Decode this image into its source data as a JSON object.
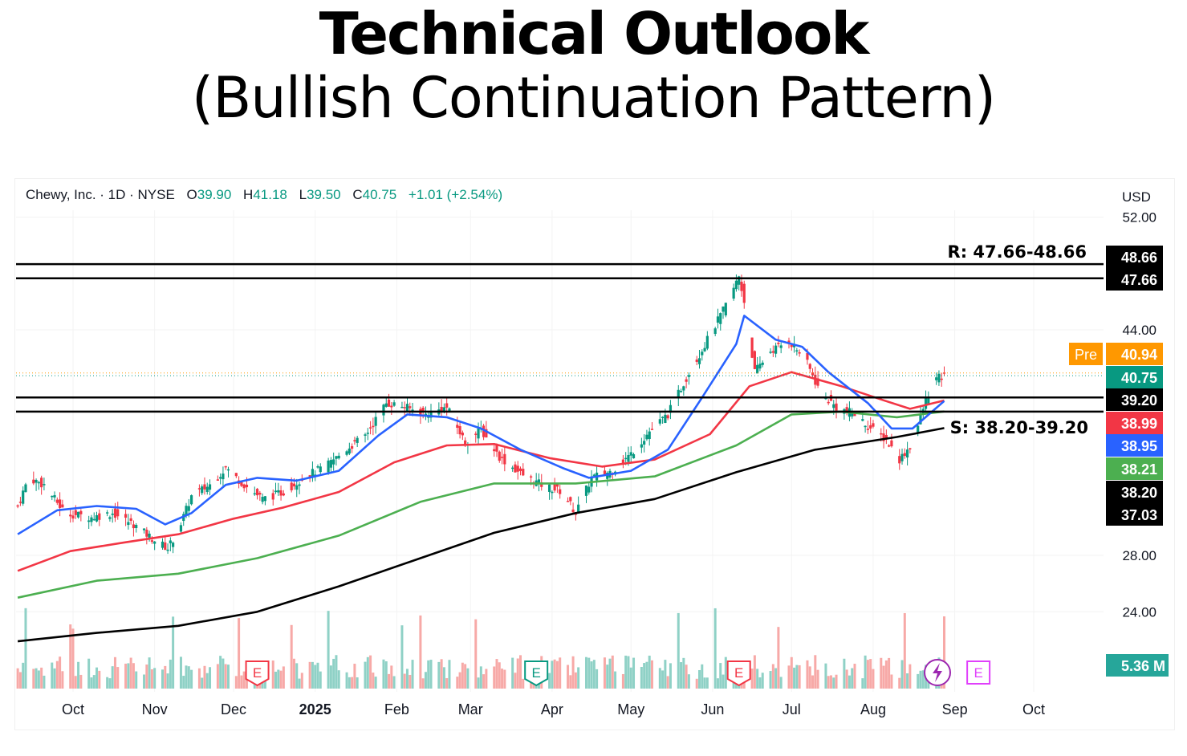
{
  "header": {
    "title": "Technical Outlook",
    "subtitle": "(Bullish Continuation Pattern)"
  },
  "info_bar": {
    "symbol": "Chewy, Inc. · 1D · NYSE",
    "open_label": "O",
    "open": "39.90",
    "high_label": "H",
    "high": "41.18",
    "low_label": "L",
    "low": "39.50",
    "close_label": "C",
    "close": "40.75",
    "change": "+1.01 (+2.54%)"
  },
  "currency": "USD",
  "colors": {
    "up": "#089981",
    "down": "#f23645",
    "ema20": "#2962ff",
    "ema50": "#f23645",
    "ema100": "#4caf50",
    "ema200": "#000000",
    "pre": "#ff9800"
  },
  "chart_data": {
    "type": "candlestick",
    "price_axis": {
      "ticks": [
        24,
        28,
        44,
        52
      ],
      "tick_labels": [
        "24.00",
        "28.00",
        "44.00",
        "52.00"
      ],
      "range": [
        21.5,
        52.5
      ]
    },
    "time_axis": [
      "Oct",
      "Nov",
      "Dec",
      "2025",
      "Feb",
      "Mar",
      "Apr",
      "May",
      "Jun",
      "Jul",
      "Aug",
      "Sep",
      "Oct"
    ],
    "resistance": {
      "label": "R: 47.66-48.66",
      "low": 47.66,
      "high": 48.66
    },
    "support": {
      "label": "S: 38.20-39.20",
      "low": 38.2,
      "high": 39.2
    },
    "price_labels": [
      {
        "text": "48.66",
        "value": 48.66,
        "color": "#000000"
      },
      {
        "text": "47.66",
        "value": 47.66,
        "color": "#000000"
      },
      {
        "text": "40.94",
        "value": 40.94,
        "color": "#ff9800",
        "tag": "Pre"
      },
      {
        "text": "40.75",
        "value": 40.75,
        "color": "#089981"
      },
      {
        "text": "39.20",
        "value": 39.2,
        "color": "#000000"
      },
      {
        "text": "38.99",
        "value": 38.99,
        "color": "#f23645"
      },
      {
        "text": "38.95",
        "value": 38.95,
        "color": "#2962ff"
      },
      {
        "text": "38.21",
        "value": 38.21,
        "color": "#4caf50"
      },
      {
        "text": "38.20",
        "value": 38.2,
        "color": "#000000"
      },
      {
        "text": "37.03",
        "value": 37.03,
        "color": "#000000"
      }
    ],
    "volume_label": "5.36 M",
    "events": [
      {
        "date": "2024-12-10",
        "label": "E",
        "color": "#f23645"
      },
      {
        "date": "2025-03-26",
        "label": "E",
        "color": "#089981"
      },
      {
        "date": "2025-06-11",
        "label": "E",
        "color": "#f23645"
      },
      {
        "date": "2025-09-10",
        "label": "E",
        "color": "#e040fb"
      }
    ],
    "price_path": [
      [
        "2024-09-10",
        31.5
      ],
      [
        "2024-09-14",
        33.5
      ],
      [
        "2024-09-20",
        33.0
      ],
      [
        "2024-09-28",
        31.0
      ],
      [
        "2024-10-08",
        30.7
      ],
      [
        "2024-10-16",
        31.0
      ],
      [
        "2024-10-24",
        30.2
      ],
      [
        "2024-10-31",
        29.2
      ],
      [
        "2024-11-06",
        28.5
      ],
      [
        "2024-11-10",
        29.8
      ],
      [
        "2024-11-15",
        32.2
      ],
      [
        "2024-11-22",
        33.0
      ],
      [
        "2024-11-28",
        34.2
      ],
      [
        "2024-12-05",
        33.0
      ],
      [
        "2024-12-12",
        32.0
      ],
      [
        "2024-12-20",
        32.5
      ],
      [
        "2024-12-28",
        33.6
      ],
      [
        "2025-01-05",
        34.3
      ],
      [
        "2025-01-12",
        35.4
      ],
      [
        "2025-01-20",
        36.5
      ],
      [
        "2025-01-28",
        38.8
      ],
      [
        "2025-02-03",
        38.6
      ],
      [
        "2025-02-12",
        38.0
      ],
      [
        "2025-02-20",
        38.5
      ],
      [
        "2025-02-27",
        36.0
      ],
      [
        "2025-03-05",
        36.9
      ],
      [
        "2025-03-12",
        35.0
      ],
      [
        "2025-03-20",
        33.8
      ],
      [
        "2025-03-28",
        33.0
      ],
      [
        "2025-04-05",
        32.5
      ],
      [
        "2025-04-10",
        31.0
      ],
      [
        "2025-04-16",
        33.5
      ],
      [
        "2025-04-24",
        34.0
      ],
      [
        "2025-05-01",
        35.2
      ],
      [
        "2025-05-08",
        36.8
      ],
      [
        "2025-05-15",
        38.0
      ],
      [
        "2025-05-22",
        40.6
      ],
      [
        "2025-05-28",
        42.6
      ],
      [
        "2025-06-04",
        45.0
      ],
      [
        "2025-06-08",
        46.5
      ],
      [
        "2025-06-11",
        47.8
      ],
      [
        "2025-06-13",
        46.0
      ],
      [
        "2025-06-17",
        41.0
      ],
      [
        "2025-06-23",
        42.5
      ],
      [
        "2025-06-30",
        43.2
      ],
      [
        "2025-07-06",
        42.0
      ],
      [
        "2025-07-12",
        39.5
      ],
      [
        "2025-07-18",
        38.5
      ],
      [
        "2025-07-25",
        38.0
      ],
      [
        "2025-07-31",
        37.0
      ],
      [
        "2025-08-06",
        36.2
      ],
      [
        "2025-08-11",
        34.8
      ],
      [
        "2025-08-16",
        36.0
      ],
      [
        "2025-08-21",
        39.0
      ],
      [
        "2025-08-25",
        40.5
      ],
      [
        "2025-08-28",
        40.75
      ]
    ],
    "ema20": [
      [
        "2024-09-10",
        29.5
      ],
      [
        "2024-09-25",
        31.2
      ],
      [
        "2024-10-10",
        31.5
      ],
      [
        "2024-10-25",
        31.3
      ],
      [
        "2024-11-05",
        30.2
      ],
      [
        "2024-11-15",
        31.0
      ],
      [
        "2024-11-28",
        33.0
      ],
      [
        "2024-12-10",
        33.5
      ],
      [
        "2024-12-25",
        33.3
      ],
      [
        "2025-01-10",
        34.0
      ],
      [
        "2025-01-25",
        36.5
      ],
      [
        "2025-02-05",
        38.0
      ],
      [
        "2025-02-20",
        37.8
      ],
      [
        "2025-03-05",
        37.0
      ],
      [
        "2025-03-20",
        35.5
      ],
      [
        "2025-04-05",
        34.2
      ],
      [
        "2025-04-15",
        33.5
      ],
      [
        "2025-05-01",
        34.0
      ],
      [
        "2025-05-15",
        35.5
      ],
      [
        "2025-05-28",
        39.2
      ],
      [
        "2025-06-10",
        43.0
      ],
      [
        "2025-06-13",
        45.0
      ],
      [
        "2025-06-25",
        43.3
      ],
      [
        "2025-07-05",
        42.8
      ],
      [
        "2025-07-15",
        41.0
      ],
      [
        "2025-07-30",
        38.8
      ],
      [
        "2025-08-08",
        37.0
      ],
      [
        "2025-08-16",
        37.0
      ],
      [
        "2025-08-28",
        38.95
      ]
    ],
    "ema50": [
      [
        "2024-09-10",
        26.9
      ],
      [
        "2024-09-30",
        28.3
      ],
      [
        "2024-10-20",
        28.9
      ],
      [
        "2024-11-10",
        29.5
      ],
      [
        "2024-12-01",
        30.6
      ],
      [
        "2024-12-20",
        31.4
      ],
      [
        "2025-01-10",
        32.5
      ],
      [
        "2025-01-31",
        34.6
      ],
      [
        "2025-02-20",
        35.8
      ],
      [
        "2025-03-10",
        35.9
      ],
      [
        "2025-03-31",
        34.9
      ],
      [
        "2025-04-20",
        34.3
      ],
      [
        "2025-05-10",
        34.8
      ],
      [
        "2025-05-31",
        36.6
      ],
      [
        "2025-06-15",
        40.0
      ],
      [
        "2025-07-01",
        41.0
      ],
      [
        "2025-07-20",
        40.0
      ],
      [
        "2025-08-05",
        39.0
      ],
      [
        "2025-08-15",
        38.4
      ],
      [
        "2025-08-28",
        38.99
      ]
    ],
    "ema100": [
      [
        "2024-09-10",
        25.0
      ],
      [
        "2024-10-10",
        26.2
      ],
      [
        "2024-11-10",
        26.7
      ],
      [
        "2024-12-10",
        27.8
      ],
      [
        "2025-01-10",
        29.4
      ],
      [
        "2025-02-10",
        31.8
      ],
      [
        "2025-03-10",
        33.1
      ],
      [
        "2025-04-10",
        33.1
      ],
      [
        "2025-05-10",
        33.6
      ],
      [
        "2025-06-10",
        35.8
      ],
      [
        "2025-07-01",
        38.0
      ],
      [
        "2025-07-20",
        38.2
      ],
      [
        "2025-08-10",
        37.8
      ],
      [
        "2025-08-28",
        38.21
      ]
    ],
    "ema200": [
      [
        "2024-09-10",
        21.9
      ],
      [
        "2024-10-10",
        22.5
      ],
      [
        "2024-11-10",
        23.0
      ],
      [
        "2024-12-10",
        24.0
      ],
      [
        "2025-01-10",
        25.8
      ],
      [
        "2025-02-10",
        27.8
      ],
      [
        "2025-03-10",
        29.6
      ],
      [
        "2025-04-10",
        31.0
      ],
      [
        "2025-05-10",
        32.0
      ],
      [
        "2025-06-10",
        33.9
      ],
      [
        "2025-07-10",
        35.5
      ],
      [
        "2025-08-10",
        36.4
      ],
      [
        "2025-08-28",
        37.03
      ]
    ]
  }
}
